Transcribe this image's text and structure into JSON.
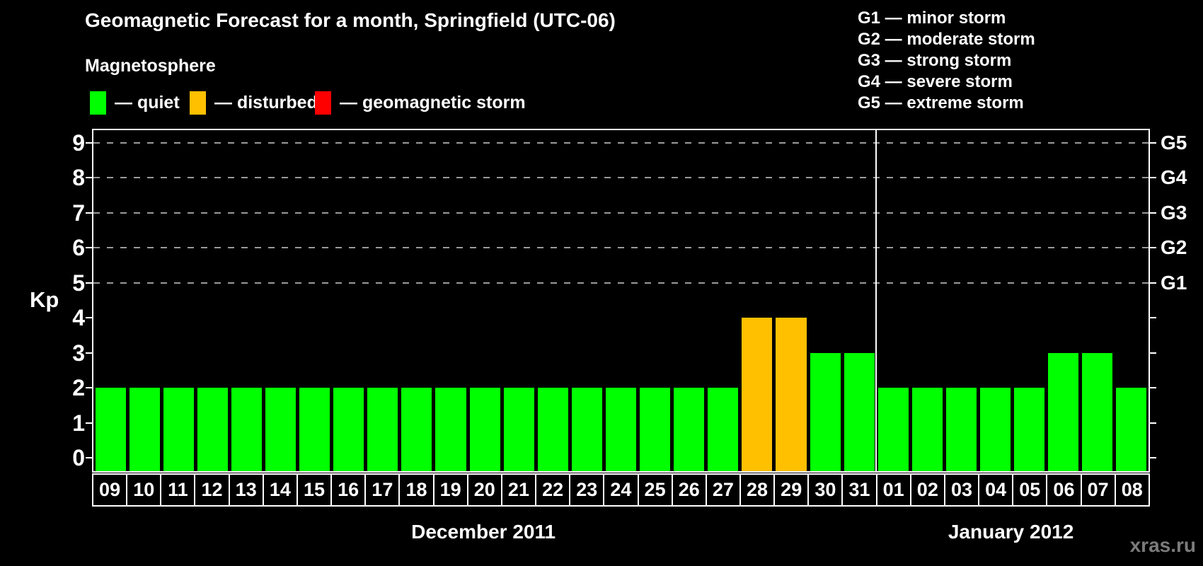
{
  "header": {
    "title": "Geomagnetic Forecast for a month, Springfield (UTC-06)",
    "subtitle": "Magnetosphere"
  },
  "legend": {
    "items": [
      {
        "label": "— quiet",
        "state": "quiet",
        "color": "#00FF00"
      },
      {
        "label": "— disturbed",
        "state": "disturbed",
        "color": "#FFC000"
      },
      {
        "label": "— geomagnetic storm",
        "state": "storm",
        "color": "#FF0000"
      }
    ]
  },
  "g_legend": {
    "items": [
      "G1 — minor storm",
      "G2 — moderate storm",
      "G3 — strong storm",
      "G4 — severe storm",
      "G5 — extreme storm"
    ]
  },
  "watermark": "xras.ru",
  "chart_data": {
    "type": "bar",
    "title": "Geomagnetic Forecast for a month, Springfield (UTC-06)",
    "ylabel": "Kp",
    "xlabel": "",
    "ylim": [
      0,
      9
    ],
    "y_ticks": [
      0,
      1,
      2,
      3,
      4,
      5,
      6,
      7,
      8,
      9
    ],
    "gridlines_at_kp": [
      5,
      6,
      7,
      8,
      9
    ],
    "grid": "dashed-horizontal",
    "legend_position": "top-left",
    "right_axis": {
      "labels": [
        "G5",
        "G4",
        "G3",
        "G2",
        "G1"
      ],
      "at_kp": [
        9,
        8,
        7,
        6,
        5
      ]
    },
    "categories": [
      "09",
      "10",
      "11",
      "12",
      "13",
      "14",
      "15",
      "16",
      "17",
      "18",
      "19",
      "20",
      "21",
      "22",
      "23",
      "24",
      "25",
      "26",
      "27",
      "28",
      "29",
      "30",
      "31",
      "01",
      "02",
      "03",
      "04",
      "05",
      "06",
      "07",
      "08"
    ],
    "values": [
      2,
      2,
      2,
      2,
      2,
      2,
      2,
      2,
      2,
      2,
      2,
      2,
      2,
      2,
      2,
      2,
      2,
      2,
      2,
      4,
      4,
      3,
      3,
      2,
      2,
      2,
      2,
      2,
      3,
      3,
      2
    ],
    "states": [
      "quiet",
      "quiet",
      "quiet",
      "quiet",
      "quiet",
      "quiet",
      "quiet",
      "quiet",
      "quiet",
      "quiet",
      "quiet",
      "quiet",
      "quiet",
      "quiet",
      "quiet",
      "quiet",
      "quiet",
      "quiet",
      "quiet",
      "disturbed",
      "disturbed",
      "quiet",
      "quiet",
      "quiet",
      "quiet",
      "quiet",
      "quiet",
      "quiet",
      "quiet",
      "quiet",
      "quiet"
    ],
    "colors": {
      "quiet": "#00FF00",
      "disturbed": "#FFC000",
      "storm": "#FF0000"
    },
    "months": [
      {
        "label": "December 2011",
        "start_index": 0,
        "end_index": 22
      },
      {
        "label": "January 2012",
        "start_index": 23,
        "end_index": 30
      }
    ],
    "separator_after_index": 22
  }
}
